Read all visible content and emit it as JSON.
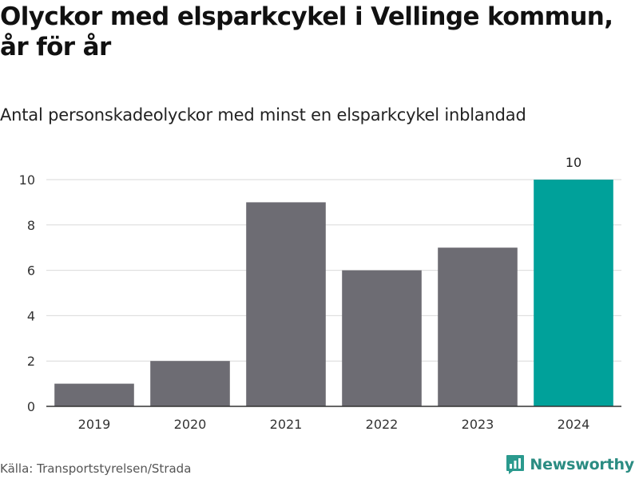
{
  "title": "Olyckor med elsparkcykel i Vellinge kommun, år för år",
  "subtitle": "Antal personskadeolyckor med minst en elsparkcykel inblandad",
  "source": "Källa: Transportstyrelsen/Strada",
  "brand": {
    "name": "Newsworthy",
    "icon": "bar-chart-logo-icon",
    "color": "#2b9a8e"
  },
  "colors": {
    "bar": "#6d6c73",
    "highlight": "#00a19a",
    "grid": "#d9d9d9",
    "axis": "#333333"
  },
  "chart_data": {
    "type": "bar",
    "categories": [
      "2019",
      "2020",
      "2021",
      "2022",
      "2023",
      "2024"
    ],
    "values": [
      1,
      2,
      9,
      6,
      7,
      10
    ],
    "highlight_index": 5,
    "data_labels": {
      "5": "10"
    },
    "title": "Olyckor med elsparkcykel i Vellinge kommun, år för år",
    "subtitle": "Antal personskadeolyckor med minst en elsparkcykel inblandad",
    "xlabel": "",
    "ylabel": "",
    "ylim": [
      0,
      10
    ],
    "yticks": [
      0,
      2,
      4,
      6,
      8,
      10
    ],
    "grid": true,
    "legend": "none"
  }
}
